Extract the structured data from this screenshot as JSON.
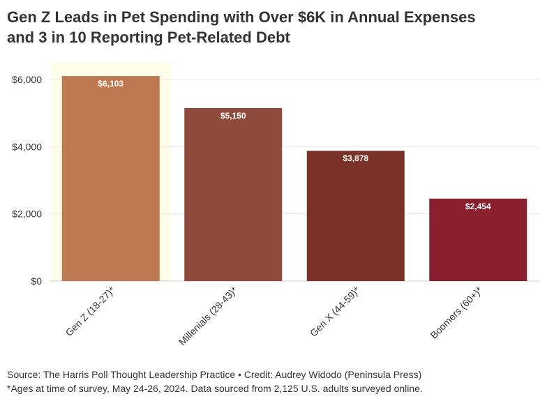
{
  "title": {
    "line1": "Gen Z Leads in Pet Spending with Over $6K in Annual Expenses",
    "line2": "and 3 in 10 Reporting Pet-Related Debt"
  },
  "footer": {
    "source": "Source: The Harris Poll Thought Leadership Practice • Credit: Audrey Widodo (Peninsula Press)",
    "note": "*Ages at time of survey, May 24-26, 2024. Data sourced from 2,125 U.S. adults surveyed online."
  },
  "chart_data": {
    "type": "bar",
    "title": "Gen Z Leads in Pet Spending with Over $6K in Annual Expenses and 3 in 10 Reporting Pet-Related Debt",
    "xlabel": "",
    "ylabel": "",
    "categories": [
      "Gen Z (18-27)*",
      "Millenials (28-43)*",
      "Gen X (44-59)*",
      "Boomers (60+)*"
    ],
    "values": [
      6103,
      5150,
      3878,
      2454
    ],
    "value_labels": [
      "$6,103",
      "$5,150",
      "$3,878",
      "$2,454"
    ],
    "colors": [
      "#bd7a52",
      "#8e4a3c",
      "#7a3127",
      "#8a1f2e"
    ],
    "highlight_color": "#fffdea",
    "highlight_category": "Gen Z (18-27)*",
    "ylim": [
      0,
      6000
    ],
    "yticks": [
      0,
      2000,
      4000,
      6000
    ],
    "ytick_labels": [
      "$0",
      "$2,000",
      "$4,000",
      "$6,000"
    ],
    "grid": true,
    "legend": "none"
  }
}
